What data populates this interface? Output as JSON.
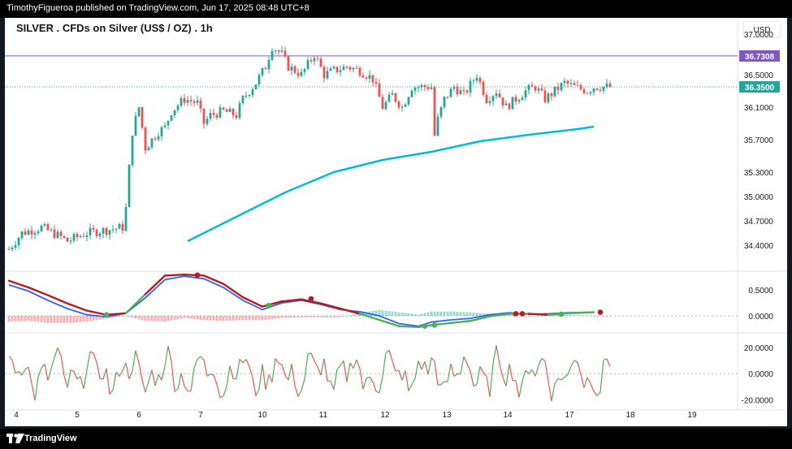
{
  "publisher_line": "TimothyFigueroa published on TradingView.com, Jun 17, 2025 08:48 UTC+8",
  "footer_brand": "TradingView",
  "currency_button": "USD",
  "chart_data": {
    "type": "candlestick",
    "title": "SILVER . CFDs on Silver (US$ / OZ) . 1h",
    "x_tick_labels": [
      "4",
      "5",
      "6",
      "7",
      "10",
      "11",
      "12",
      "13",
      "14",
      "17",
      "18",
      "19"
    ],
    "price_axis": {
      "ylim": [
        34.1,
        37.2
      ],
      "tick_labels": [
        "37.0000",
        "36.5000",
        "36.1000",
        "35.7000",
        "35.3000",
        "35.0000",
        "34.7000",
        "34.4000"
      ],
      "tick_values": [
        37.0,
        36.5,
        36.1,
        35.7,
        35.3,
        35.0,
        34.7,
        34.4
      ]
    },
    "horizontal_line": {
      "value": 36.7308,
      "label": "36.7308",
      "color": "#7e57c2"
    },
    "last_price": {
      "value": 36.35,
      "label": "36.3500",
      "color": "#26a69a"
    },
    "candle_colors": {
      "up": "#26a69a",
      "down": "#ef5350"
    },
    "candle_count": 186,
    "price_anchors": [
      [
        0,
        34.35
      ],
      [
        4,
        34.55
      ],
      [
        10,
        34.62
      ],
      [
        16,
        34.5
      ],
      [
        18,
        34.45
      ],
      [
        24,
        34.55
      ],
      [
        32,
        34.6
      ],
      [
        35,
        34.62
      ],
      [
        36,
        34.85
      ],
      [
        37,
        35.35
      ],
      [
        38,
        35.8
      ],
      [
        40,
        36.1
      ],
      [
        42,
        35.6
      ],
      [
        44,
        35.7
      ],
      [
        46,
        35.8
      ],
      [
        48,
        35.85
      ],
      [
        50,
        36.05
      ],
      [
        54,
        36.2
      ],
      [
        58,
        36.15
      ],
      [
        60,
        35.9
      ],
      [
        62,
        36.0
      ],
      [
        66,
        36.05
      ],
      [
        70,
        36.0
      ],
      [
        72,
        36.2
      ],
      [
        76,
        36.4
      ],
      [
        79,
        36.6
      ],
      [
        81,
        36.85
      ],
      [
        84,
        36.75
      ],
      [
        86,
        36.6
      ],
      [
        88,
        36.55
      ],
      [
        90,
        36.5
      ],
      [
        94,
        36.75
      ],
      [
        97,
        36.5
      ],
      [
        100,
        36.55
      ],
      [
        104,
        36.6
      ],
      [
        108,
        36.55
      ],
      [
        112,
        36.45
      ],
      [
        115,
        36.1
      ],
      [
        118,
        36.25
      ],
      [
        121,
        36.1
      ],
      [
        124,
        36.35
      ],
      [
        130,
        36.35
      ],
      [
        131,
        35.75
      ],
      [
        132,
        35.95
      ],
      [
        134,
        36.2
      ],
      [
        137,
        36.35
      ],
      [
        140,
        36.25
      ],
      [
        144,
        36.5
      ],
      [
        147,
        36.2
      ],
      [
        150,
        36.3
      ],
      [
        153,
        36.1
      ],
      [
        156,
        36.2
      ],
      [
        159,
        36.3
      ],
      [
        162,
        36.35
      ],
      [
        165,
        36.2
      ],
      [
        168,
        36.3
      ],
      [
        171,
        36.4
      ],
      [
        174,
        36.35
      ],
      [
        178,
        36.3
      ],
      [
        180,
        36.35
      ]
    ],
    "indicators": [
      {
        "name": "Moving average",
        "color": "#00bcd4",
        "values": [
          [
            55,
            34.45
          ],
          [
            70,
            34.75
          ],
          [
            85,
            35.05
          ],
          [
            100,
            35.3
          ],
          [
            115,
            35.45
          ],
          [
            130,
            35.55
          ],
          [
            145,
            35.68
          ],
          [
            160,
            35.76
          ],
          [
            175,
            35.83
          ],
          [
            180,
            35.86
          ]
        ]
      },
      {
        "name": "MACD",
        "tick_labels": [
          "0.5000",
          "0.0000"
        ],
        "tick_values": [
          0.5,
          0.0
        ],
        "ylim": [
          -0.3,
          0.85
        ],
        "macd_color": "#2962ff",
        "signal_color_up": "#4caf50",
        "signal_color_down": "#b71c1c",
        "macd_line": [
          [
            0,
            0.6
          ],
          [
            6,
            0.48
          ],
          [
            12,
            0.3
          ],
          [
            18,
            0.14
          ],
          [
            24,
            0.02
          ],
          [
            30,
            -0.02
          ],
          [
            36,
            0.05
          ],
          [
            42,
            0.35
          ],
          [
            48,
            0.7
          ],
          [
            54,
            0.77
          ],
          [
            60,
            0.72
          ],
          [
            66,
            0.55
          ],
          [
            72,
            0.3
          ],
          [
            78,
            0.12
          ],
          [
            84,
            0.25
          ],
          [
            90,
            0.3
          ],
          [
            96,
            0.22
          ],
          [
            102,
            0.12
          ],
          [
            108,
            0.08
          ],
          [
            114,
            0.0
          ],
          [
            120,
            -0.15
          ],
          [
            126,
            -0.2
          ],
          [
            130,
            -0.12
          ],
          [
            136,
            -0.08
          ],
          [
            142,
            -0.05
          ],
          [
            148,
            0.02
          ],
          [
            154,
            0.06
          ],
          [
            160,
            0.03
          ],
          [
            166,
            0.04
          ],
          [
            172,
            0.06
          ],
          [
            180,
            0.07
          ]
        ],
        "signal_line": [
          [
            0,
            0.68
          ],
          [
            6,
            0.55
          ],
          [
            12,
            0.4
          ],
          [
            18,
            0.24
          ],
          [
            24,
            0.1
          ],
          [
            30,
            0.02
          ],
          [
            36,
            0.05
          ],
          [
            42,
            0.42
          ],
          [
            48,
            0.78
          ],
          [
            54,
            0.8
          ],
          [
            60,
            0.78
          ],
          [
            66,
            0.62
          ],
          [
            72,
            0.36
          ],
          [
            78,
            0.18
          ],
          [
            84,
            0.28
          ],
          [
            90,
            0.32
          ],
          [
            96,
            0.24
          ],
          [
            102,
            0.14
          ],
          [
            108,
            0.04
          ],
          [
            114,
            -0.08
          ],
          [
            120,
            -0.2
          ],
          [
            126,
            -0.22
          ],
          [
            130,
            -0.18
          ],
          [
            136,
            -0.14
          ],
          [
            142,
            -0.1
          ],
          [
            148,
            -0.01
          ],
          [
            154,
            0.04
          ],
          [
            160,
            0.04
          ],
          [
            166,
            0.02
          ],
          [
            172,
            0.05
          ],
          [
            180,
            0.07
          ]
        ],
        "cross_markers": [
          {
            "index": 30,
            "value": 0.02,
            "kind": "bull"
          },
          {
            "index": 58,
            "value": 0.79,
            "kind": "bear"
          },
          {
            "index": 80,
            "value": 0.2,
            "kind": "bull"
          },
          {
            "index": 93,
            "value": 0.33,
            "kind": "bear"
          },
          {
            "index": 128,
            "value": -0.2,
            "kind": "bull"
          },
          {
            "index": 131,
            "value": -0.18,
            "kind": "bull"
          },
          {
            "index": 156,
            "value": 0.04,
            "kind": "bear"
          },
          {
            "index": 158,
            "value": 0.04,
            "kind": "bear"
          },
          {
            "index": 170,
            "value": 0.03,
            "kind": "bull"
          },
          {
            "index": 182,
            "value": 0.07,
            "kind": "bear"
          }
        ]
      },
      {
        "name": "Oscillator",
        "tick_labels": [
          "20.0000",
          "0.0000",
          "-20.0000"
        ],
        "tick_values": [
          20.0,
          0.0,
          -20.0
        ],
        "ylim": [
          -26,
          30
        ],
        "color_up": "#4caf50",
        "color_down": "#ef5350"
      }
    ]
  },
  "colors": {
    "panel_bg": "#ffffff",
    "grid": "#f0f3fa",
    "axis_text": "#131722",
    "moving_average": "#00bcd4"
  }
}
